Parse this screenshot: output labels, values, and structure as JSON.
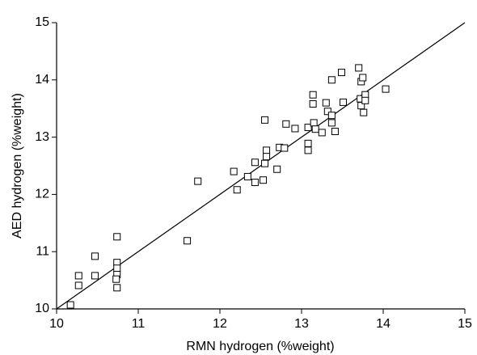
{
  "chart_data": {
    "type": "scatter",
    "x_label": "RMN hydrogen (%weight)",
    "y_label": "AED hydrogen (%weight)",
    "xlim": [
      10,
      15
    ],
    "ylim": [
      10,
      15
    ],
    "xticks": [
      10,
      11,
      12,
      13,
      14,
      15
    ],
    "yticks": [
      10,
      11,
      12,
      13,
      14,
      15
    ],
    "color": "#000000",
    "x": [
      10.17,
      10.27,
      10.27,
      10.47,
      10.47,
      10.74,
      10.74,
      10.74,
      10.74,
      10.73,
      10.74,
      11.6,
      11.73,
      12.17,
      12.21,
      12.34,
      12.43,
      12.43,
      12.53,
      12.55,
      12.57,
      12.57,
      12.55,
      12.7,
      12.73,
      12.79,
      12.81,
      12.92,
      13.08,
      13.08,
      13.08,
      13.14,
      13.14,
      13.15,
      13.17,
      13.25,
      13.3,
      13.32,
      13.37,
      13.37,
      13.37,
      13.41,
      13.49,
      13.51,
      13.7,
      13.72,
      13.73,
      13.75,
      13.73,
      13.76,
      13.78,
      13.78,
      14.03
    ],
    "values": [
      10.07,
      10.58,
      10.41,
      10.92,
      10.58,
      11.26,
      10.81,
      10.71,
      10.6,
      10.52,
      10.37,
      11.19,
      12.23,
      12.4,
      12.08,
      12.31,
      12.56,
      12.21,
      12.25,
      13.3,
      12.77,
      12.66,
      12.54,
      12.44,
      12.82,
      12.81,
      13.23,
      13.15,
      13.17,
      12.89,
      12.77,
      13.74,
      13.58,
      13.25,
      13.14,
      13.08,
      13.6,
      13.45,
      14.0,
      13.38,
      13.25,
      13.1,
      14.13,
      13.61,
      14.21,
      13.67,
      13.97,
      14.04,
      13.55,
      13.43,
      13.74,
      13.64,
      13.84
    ],
    "reference_line": {
      "x": [
        10,
        15
      ],
      "y": [
        10,
        15
      ]
    }
  }
}
